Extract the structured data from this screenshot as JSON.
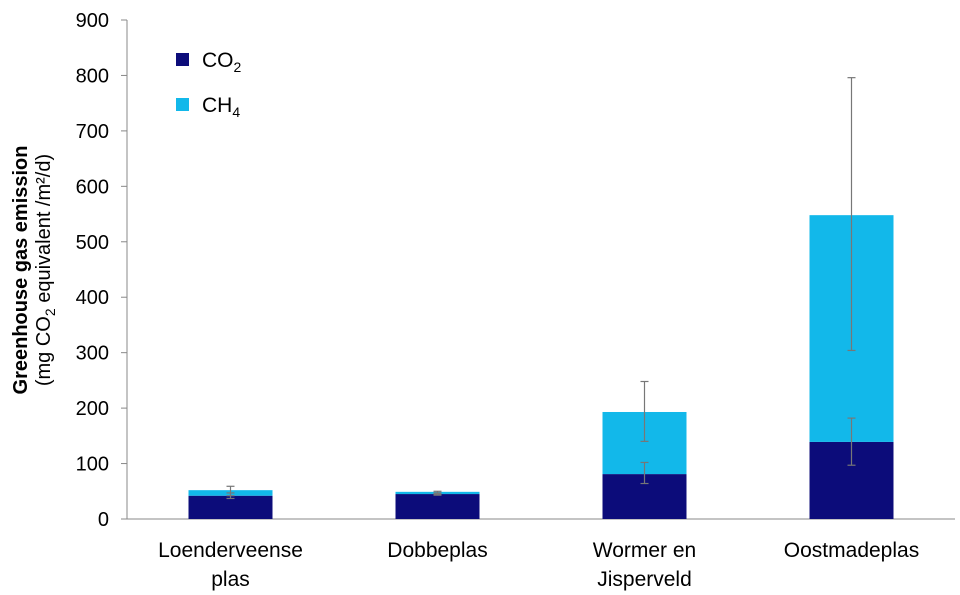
{
  "chart_data": {
    "type": "bar",
    "stacked": true,
    "categories": [
      [
        "Loenderveense",
        "plas"
      ],
      [
        "Dobbeplas"
      ],
      [
        "Wormer en",
        "Jisperveld"
      ],
      [
        "Oostmadeplas"
      ]
    ],
    "series": [
      {
        "name": "CO",
        "sub": "2",
        "color": "#0c0c7a",
        "values": [
          42,
          45,
          81,
          139
        ]
      },
      {
        "name": "CH",
        "sub": "4",
        "color": "#12b8ea",
        "values": [
          10,
          4,
          112,
          409
        ]
      }
    ],
    "error_bars": {
      "CO2": [
        [
          37,
          47
        ],
        [
          43,
          47
        ],
        [
          64,
          102
        ],
        [
          97,
          182
        ]
      ],
      "total": [
        [
          42,
          59
        ],
        [
          45,
          50
        ],
        [
          140,
          248
        ],
        [
          304,
          796
        ]
      ]
    },
    "ylabel": {
      "main": "Greenhouse gas emission",
      "sub_parts": [
        "(mg CO",
        "2",
        " equivalent /m²/d)"
      ]
    },
    "ylim": [
      0,
      900
    ],
    "yticks": [
      0,
      100,
      200,
      300,
      400,
      500,
      600,
      700,
      800,
      900
    ],
    "legend_position": "top-left",
    "grid": false
  }
}
